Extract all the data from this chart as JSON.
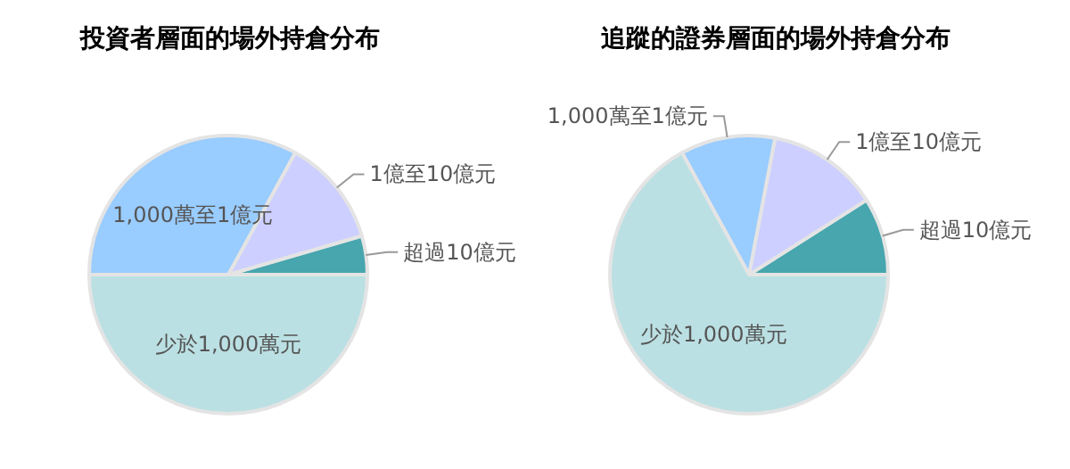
{
  "chart_data": [
    {
      "type": "pie",
      "title": "投資者層面的場外持倉分布",
      "categories": [
        "超過10億元",
        "1億至10億元",
        "1,000萬至1億元",
        "少於1,000萬元"
      ],
      "values": [
        4.5,
        12.5,
        33,
        50
      ],
      "colors": [
        "#47a6ae",
        "#cccfff",
        "#99ccff",
        "#bbe0e3"
      ]
    },
    {
      "type": "pie",
      "title": "追蹤的證券層面的場外持倉分布",
      "categories": [
        "超過10億元",
        "1億至10億元",
        "1,000萬至1億元",
        "少於1,000萬元"
      ],
      "values": [
        9,
        13,
        11,
        67
      ],
      "colors": [
        "#47a6ae",
        "#cccfff",
        "#99ccff",
        "#bbe0e3"
      ]
    }
  ]
}
